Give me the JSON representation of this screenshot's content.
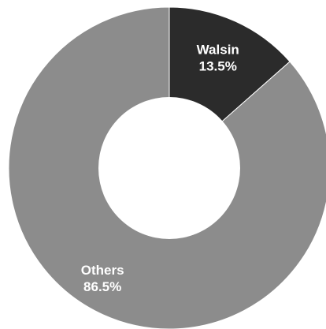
{
  "chart_data": {
    "type": "pie",
    "donut": true,
    "slices": [
      {
        "name": "Walsin",
        "value": 13.5,
        "label": "13.5%",
        "color": "#2b2b2b"
      },
      {
        "name": "Others",
        "value": 86.5,
        "label": "86.5%",
        "color": "#8c8c8c"
      }
    ],
    "legend": "none"
  }
}
